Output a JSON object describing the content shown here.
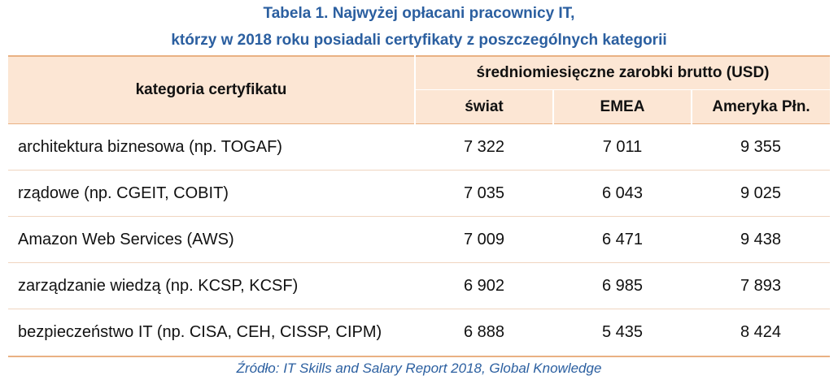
{
  "title_line1": "Tabela 1. Najwyżej opłacani pracownicy IT,",
  "title_line2": "którzy w 2018 roku posiadali certyfikaty z poszczególnych kategorii",
  "header": {
    "category": "kategoria certyfikatu",
    "group": "średniomiesięczne zarobki brutto (USD)",
    "columns": [
      "świat",
      "EMEA",
      "Ameryka Płn."
    ]
  },
  "rows": [
    {
      "category": "architektura biznesowa (np. TOGAF)",
      "world": "7 322",
      "emea": "7 011",
      "na": "9 355"
    },
    {
      "category": "rządowe (np. CGEIT, COBIT)",
      "world": "7 035",
      "emea": "6 043",
      "na": "9 025"
    },
    {
      "category": "Amazon Web Services (AWS)",
      "world": "7 009",
      "emea": "6 471",
      "na": "9 438"
    },
    {
      "category": "zarządzanie wiedzą (np. KCSP, KCSF)",
      "world": "6 902",
      "emea": "6 985",
      "na": "7 893"
    },
    {
      "category": "bezpieczeństwo IT (np. CISA, CEH, CISSP, CIPM)",
      "world": "6 888",
      "emea": "5 435",
      "na": "8 424"
    }
  ],
  "source": "Źródło: IT Skills and Salary Report 2018, Global Knowledge",
  "colors": {
    "title": "#2b5fa0",
    "header_bg": "#fce6d4",
    "border": "#e9b183"
  }
}
